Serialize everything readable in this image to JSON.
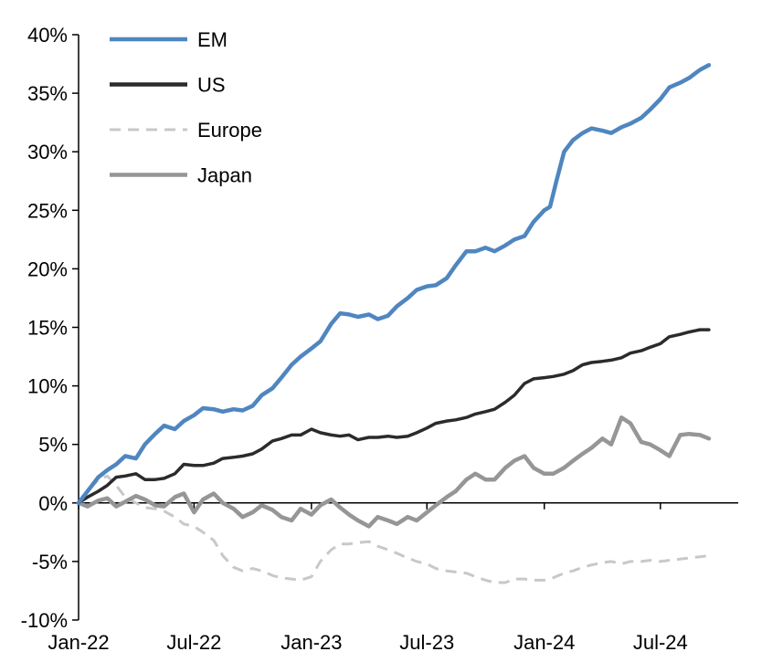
{
  "chart_data": {
    "type": "line",
    "title": "",
    "xlabel": "",
    "ylabel": "",
    "xlim": [
      "2022-01-01",
      "2024-10-31"
    ],
    "ylim": [
      -10,
      40
    ],
    "y_unit": "%",
    "y_ticks": [
      {
        "value": 40,
        "label": "40%"
      },
      {
        "value": 35,
        "label": "35%"
      },
      {
        "value": 30,
        "label": "30%"
      },
      {
        "value": 25,
        "label": "25%"
      },
      {
        "value": 20,
        "label": "20%"
      },
      {
        "value": 15,
        "label": "15%"
      },
      {
        "value": 10,
        "label": "10%"
      },
      {
        "value": 5,
        "label": "5%"
      },
      {
        "value": 0,
        "label": "0%"
      },
      {
        "value": -5,
        "label": "-5%"
      },
      {
        "value": -10,
        "label": "-10%"
      }
    ],
    "x_ticks": [
      {
        "value": "2022-01-01",
        "label": "Jan-22"
      },
      {
        "value": "2022-07-01",
        "label": "Jul-22"
      },
      {
        "value": "2023-01-01",
        "label": "Jan-23"
      },
      {
        "value": "2023-07-01",
        "label": "Jul-23"
      },
      {
        "value": "2024-01-01",
        "label": "Jan-24"
      },
      {
        "value": "2024-07-01",
        "label": "Jul-24"
      }
    ],
    "grid": false,
    "legend_position": "top-left",
    "series": [
      {
        "name": "EM",
        "color": "#4f86c0",
        "dash": "solid",
        "points": [
          [
            "2022-01-01",
            0
          ],
          [
            "2022-01-15",
            1.0
          ],
          [
            "2022-02-01",
            2.2
          ],
          [
            "2022-02-15",
            2.8
          ],
          [
            "2022-03-01",
            3.3
          ],
          [
            "2022-03-15",
            4.0
          ],
          [
            "2022-04-01",
            3.8
          ],
          [
            "2022-04-15",
            5.0
          ],
          [
            "2022-05-01",
            5.9
          ],
          [
            "2022-05-15",
            6.6
          ],
          [
            "2022-06-01",
            6.3
          ],
          [
            "2022-06-15",
            7.0
          ],
          [
            "2022-07-01",
            7.5
          ],
          [
            "2022-07-15",
            8.1
          ],
          [
            "2022-08-01",
            8.0
          ],
          [
            "2022-08-15",
            7.8
          ],
          [
            "2022-09-01",
            8.0
          ],
          [
            "2022-09-15",
            7.9
          ],
          [
            "2022-10-01",
            8.3
          ],
          [
            "2022-10-15",
            9.2
          ],
          [
            "2022-11-01",
            9.8
          ],
          [
            "2022-11-15",
            10.7
          ],
          [
            "2022-12-01",
            11.8
          ],
          [
            "2022-12-15",
            12.5
          ],
          [
            "2023-01-01",
            13.2
          ],
          [
            "2023-01-15",
            13.8
          ],
          [
            "2023-02-01",
            15.3
          ],
          [
            "2023-02-15",
            16.2
          ],
          [
            "2023-03-01",
            16.1
          ],
          [
            "2023-03-15",
            15.9
          ],
          [
            "2023-04-01",
            16.1
          ],
          [
            "2023-04-15",
            15.7
          ],
          [
            "2023-05-01",
            16.0
          ],
          [
            "2023-05-15",
            16.8
          ],
          [
            "2023-06-01",
            17.5
          ],
          [
            "2023-06-15",
            18.2
          ],
          [
            "2023-07-01",
            18.5
          ],
          [
            "2023-07-15",
            18.6
          ],
          [
            "2023-08-01",
            19.2
          ],
          [
            "2023-08-15",
            20.3
          ],
          [
            "2023-09-01",
            21.5
          ],
          [
            "2023-09-15",
            21.5
          ],
          [
            "2023-10-01",
            21.8
          ],
          [
            "2023-10-15",
            21.5
          ],
          [
            "2023-11-01",
            22.0
          ],
          [
            "2023-11-15",
            22.5
          ],
          [
            "2023-12-01",
            22.8
          ],
          [
            "2023-12-15",
            24.0
          ],
          [
            "2024-01-01",
            25.0
          ],
          [
            "2024-01-10",
            25.3
          ],
          [
            "2024-01-20",
            27.5
          ],
          [
            "2024-02-01",
            30.0
          ],
          [
            "2024-02-15",
            31.0
          ],
          [
            "2024-03-01",
            31.6
          ],
          [
            "2024-03-15",
            32.0
          ],
          [
            "2024-04-01",
            31.8
          ],
          [
            "2024-04-15",
            31.6
          ],
          [
            "2024-05-01",
            32.1
          ],
          [
            "2024-05-15",
            32.4
          ],
          [
            "2024-06-01",
            32.9
          ],
          [
            "2024-06-15",
            33.6
          ],
          [
            "2024-07-01",
            34.5
          ],
          [
            "2024-07-15",
            35.5
          ],
          [
            "2024-08-01",
            35.9
          ],
          [
            "2024-08-15",
            36.3
          ],
          [
            "2024-09-01",
            37.0
          ],
          [
            "2024-09-15",
            37.4
          ]
        ]
      },
      {
        "name": "US",
        "color": "#2b2b2b",
        "dash": "solid",
        "points": [
          [
            "2022-01-01",
            0
          ],
          [
            "2022-01-15",
            0.5
          ],
          [
            "2022-02-01",
            1.0
          ],
          [
            "2022-02-15",
            1.5
          ],
          [
            "2022-03-01",
            2.2
          ],
          [
            "2022-03-15",
            2.3
          ],
          [
            "2022-04-01",
            2.5
          ],
          [
            "2022-04-15",
            2.0
          ],
          [
            "2022-05-01",
            2.0
          ],
          [
            "2022-05-15",
            2.1
          ],
          [
            "2022-06-01",
            2.5
          ],
          [
            "2022-06-15",
            3.3
          ],
          [
            "2022-07-01",
            3.2
          ],
          [
            "2022-07-15",
            3.2
          ],
          [
            "2022-08-01",
            3.4
          ],
          [
            "2022-08-15",
            3.8
          ],
          [
            "2022-09-01",
            3.9
          ],
          [
            "2022-09-15",
            4.0
          ],
          [
            "2022-10-01",
            4.2
          ],
          [
            "2022-10-15",
            4.6
          ],
          [
            "2022-11-01",
            5.3
          ],
          [
            "2022-11-15",
            5.5
          ],
          [
            "2022-12-01",
            5.8
          ],
          [
            "2022-12-15",
            5.8
          ],
          [
            "2023-01-01",
            6.3
          ],
          [
            "2023-01-15",
            6.0
          ],
          [
            "2023-02-01",
            5.8
          ],
          [
            "2023-02-15",
            5.7
          ],
          [
            "2023-03-01",
            5.8
          ],
          [
            "2023-03-15",
            5.4
          ],
          [
            "2023-04-01",
            5.6
          ],
          [
            "2023-04-15",
            5.6
          ],
          [
            "2023-05-01",
            5.7
          ],
          [
            "2023-05-15",
            5.6
          ],
          [
            "2023-06-01",
            5.7
          ],
          [
            "2023-06-15",
            6.0
          ],
          [
            "2023-07-01",
            6.4
          ],
          [
            "2023-07-15",
            6.8
          ],
          [
            "2023-08-01",
            7.0
          ],
          [
            "2023-08-15",
            7.1
          ],
          [
            "2023-09-01",
            7.3
          ],
          [
            "2023-09-15",
            7.6
          ],
          [
            "2023-10-01",
            7.8
          ],
          [
            "2023-10-15",
            8.0
          ],
          [
            "2023-11-01",
            8.6
          ],
          [
            "2023-11-15",
            9.2
          ],
          [
            "2023-12-01",
            10.2
          ],
          [
            "2023-12-15",
            10.6
          ],
          [
            "2024-01-01",
            10.7
          ],
          [
            "2024-01-15",
            10.8
          ],
          [
            "2024-02-01",
            11.0
          ],
          [
            "2024-02-15",
            11.3
          ],
          [
            "2024-03-01",
            11.8
          ],
          [
            "2024-03-15",
            12.0
          ],
          [
            "2024-04-01",
            12.1
          ],
          [
            "2024-04-15",
            12.2
          ],
          [
            "2024-05-01",
            12.4
          ],
          [
            "2024-05-15",
            12.8
          ],
          [
            "2024-06-01",
            13.0
          ],
          [
            "2024-06-15",
            13.3
          ],
          [
            "2024-07-01",
            13.6
          ],
          [
            "2024-07-15",
            14.2
          ],
          [
            "2024-08-01",
            14.4
          ],
          [
            "2024-08-15",
            14.6
          ],
          [
            "2024-09-01",
            14.8
          ],
          [
            "2024-09-15",
            14.8
          ]
        ]
      },
      {
        "name": "Europe",
        "color": "#c8c8c8",
        "dash": "dashed",
        "points": [
          [
            "2022-01-01",
            0
          ],
          [
            "2022-01-15",
            1.0
          ],
          [
            "2022-02-01",
            2.0
          ],
          [
            "2022-02-15",
            2.3
          ],
          [
            "2022-03-01",
            1.5
          ],
          [
            "2022-03-15",
            0.5
          ],
          [
            "2022-04-01",
            0.0
          ],
          [
            "2022-04-15",
            -0.4
          ],
          [
            "2022-05-01",
            -0.5
          ],
          [
            "2022-05-15",
            -0.7
          ],
          [
            "2022-06-01",
            -1.2
          ],
          [
            "2022-06-15",
            -1.8
          ],
          [
            "2022-07-01",
            -2.0
          ],
          [
            "2022-07-15",
            -2.5
          ],
          [
            "2022-08-01",
            -3.2
          ],
          [
            "2022-08-15",
            -4.5
          ],
          [
            "2022-09-01",
            -5.5
          ],
          [
            "2022-09-15",
            -5.8
          ],
          [
            "2022-10-01",
            -5.6
          ],
          [
            "2022-10-15",
            -5.8
          ],
          [
            "2022-11-01",
            -6.2
          ],
          [
            "2022-11-15",
            -6.4
          ],
          [
            "2022-12-01",
            -6.5
          ],
          [
            "2022-12-15",
            -6.6
          ],
          [
            "2023-01-01",
            -6.3
          ],
          [
            "2023-01-15",
            -5.0
          ],
          [
            "2023-02-01",
            -4.0
          ],
          [
            "2023-02-15",
            -3.5
          ],
          [
            "2023-03-01",
            -3.5
          ],
          [
            "2023-03-15",
            -3.4
          ],
          [
            "2023-04-01",
            -3.3
          ],
          [
            "2023-04-15",
            -3.7
          ],
          [
            "2023-05-01",
            -4.0
          ],
          [
            "2023-05-15",
            -4.3
          ],
          [
            "2023-06-01",
            -4.7
          ],
          [
            "2023-06-15",
            -5.0
          ],
          [
            "2023-07-01",
            -5.2
          ],
          [
            "2023-07-15",
            -5.6
          ],
          [
            "2023-08-01",
            -5.8
          ],
          [
            "2023-08-15",
            -5.9
          ],
          [
            "2023-09-01",
            -6.0
          ],
          [
            "2023-09-15",
            -6.3
          ],
          [
            "2023-10-01",
            -6.6
          ],
          [
            "2023-10-15",
            -6.8
          ],
          [
            "2023-11-01",
            -6.8
          ],
          [
            "2023-11-15",
            -6.5
          ],
          [
            "2023-12-01",
            -6.5
          ],
          [
            "2023-12-15",
            -6.6
          ],
          [
            "2024-01-01",
            -6.6
          ],
          [
            "2024-01-15",
            -6.4
          ],
          [
            "2024-02-01",
            -6.0
          ],
          [
            "2024-02-15",
            -5.8
          ],
          [
            "2024-03-01",
            -5.5
          ],
          [
            "2024-03-15",
            -5.3
          ],
          [
            "2024-04-01",
            -5.1
          ],
          [
            "2024-04-15",
            -5.0
          ],
          [
            "2024-05-01",
            -5.2
          ],
          [
            "2024-05-15",
            -5.0
          ],
          [
            "2024-06-01",
            -5.0
          ],
          [
            "2024-06-15",
            -4.9
          ],
          [
            "2024-07-01",
            -5.0
          ],
          [
            "2024-07-15",
            -4.9
          ],
          [
            "2024-08-01",
            -4.8
          ],
          [
            "2024-08-15",
            -4.7
          ],
          [
            "2024-09-01",
            -4.6
          ],
          [
            "2024-09-15",
            -4.5
          ]
        ]
      },
      {
        "name": "Japan",
        "color": "#969696",
        "dash": "solid",
        "points": [
          [
            "2022-01-01",
            0
          ],
          [
            "2022-01-15",
            -0.3
          ],
          [
            "2022-02-01",
            0.2
          ],
          [
            "2022-02-15",
            0.4
          ],
          [
            "2022-03-01",
            -0.3
          ],
          [
            "2022-03-15",
            0.1
          ],
          [
            "2022-04-01",
            0.6
          ],
          [
            "2022-04-15",
            0.3
          ],
          [
            "2022-05-01",
            -0.2
          ],
          [
            "2022-05-15",
            -0.3
          ],
          [
            "2022-06-01",
            0.5
          ],
          [
            "2022-06-15",
            0.8
          ],
          [
            "2022-07-01",
            -0.8
          ],
          [
            "2022-07-15",
            0.3
          ],
          [
            "2022-08-01",
            0.8
          ],
          [
            "2022-08-15",
            0.0
          ],
          [
            "2022-09-01",
            -0.5
          ],
          [
            "2022-09-15",
            -1.2
          ],
          [
            "2022-10-01",
            -0.8
          ],
          [
            "2022-10-15",
            -0.2
          ],
          [
            "2022-11-01",
            -0.6
          ],
          [
            "2022-11-15",
            -1.2
          ],
          [
            "2022-12-01",
            -1.5
          ],
          [
            "2022-12-15",
            -0.5
          ],
          [
            "2023-01-01",
            -1.0
          ],
          [
            "2023-01-15",
            -0.2
          ],
          [
            "2023-02-01",
            0.3
          ],
          [
            "2023-02-15",
            -0.4
          ],
          [
            "2023-03-01",
            -1.0
          ],
          [
            "2023-03-15",
            -1.5
          ],
          [
            "2023-04-01",
            -2.0
          ],
          [
            "2023-04-15",
            -1.2
          ],
          [
            "2023-05-01",
            -1.5
          ],
          [
            "2023-05-15",
            -1.8
          ],
          [
            "2023-06-01",
            -1.2
          ],
          [
            "2023-06-15",
            -1.5
          ],
          [
            "2023-07-01",
            -0.8
          ],
          [
            "2023-07-15",
            -0.2
          ],
          [
            "2023-08-01",
            0.5
          ],
          [
            "2023-08-15",
            1.0
          ],
          [
            "2023-09-01",
            2.0
          ],
          [
            "2023-09-15",
            2.5
          ],
          [
            "2023-10-01",
            2.0
          ],
          [
            "2023-10-15",
            2.0
          ],
          [
            "2023-11-01",
            3.0
          ],
          [
            "2023-11-15",
            3.6
          ],
          [
            "2023-12-01",
            4.0
          ],
          [
            "2023-12-15",
            3.0
          ],
          [
            "2024-01-01",
            2.5
          ],
          [
            "2024-01-15",
            2.5
          ],
          [
            "2024-02-01",
            3.0
          ],
          [
            "2024-02-15",
            3.6
          ],
          [
            "2024-03-01",
            4.2
          ],
          [
            "2024-03-15",
            4.7
          ],
          [
            "2024-04-01",
            5.5
          ],
          [
            "2024-04-15",
            5.0
          ],
          [
            "2024-05-01",
            7.3
          ],
          [
            "2024-05-15",
            6.8
          ],
          [
            "2024-06-01",
            5.2
          ],
          [
            "2024-06-15",
            5.0
          ],
          [
            "2024-07-01",
            4.5
          ],
          [
            "2024-07-15",
            4.0
          ],
          [
            "2024-08-01",
            5.8
          ],
          [
            "2024-08-15",
            5.9
          ],
          [
            "2024-09-01",
            5.8
          ],
          [
            "2024-09-15",
            5.5
          ]
        ]
      }
    ]
  }
}
